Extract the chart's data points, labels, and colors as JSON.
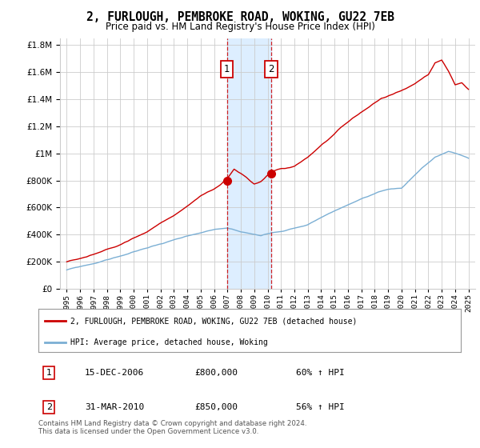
{
  "title": "2, FURLOUGH, PEMBROKE ROAD, WOKING, GU22 7EB",
  "subtitle": "Price paid vs. HM Land Registry's House Price Index (HPI)",
  "legend_label_red": "2, FURLOUGH, PEMBROKE ROAD, WOKING, GU22 7EB (detached house)",
  "legend_label_blue": "HPI: Average price, detached house, Woking",
  "footer": "Contains HM Land Registry data © Crown copyright and database right 2024.\nThis data is licensed under the Open Government Licence v3.0.",
  "purchase1_label": "1",
  "purchase1_date": "15-DEC-2006",
  "purchase1_price": "£800,000",
  "purchase1_pct": "60% ↑ HPI",
  "purchase1_year": 2006.96,
  "purchase1_value": 800000,
  "purchase2_label": "2",
  "purchase2_date": "31-MAR-2010",
  "purchase2_price": "£850,000",
  "purchase2_pct": "56% ↑ HPI",
  "purchase2_year": 2010.25,
  "purchase2_value": 850000,
  "ylim": [
    0,
    1850000
  ],
  "yticks": [
    0,
    200000,
    400000,
    600000,
    800000,
    1000000,
    1200000,
    1400000,
    1600000,
    1800000
  ],
  "ytick_labels": [
    "£0",
    "£200K",
    "£400K",
    "£600K",
    "£800K",
    "£1M",
    "£1.2M",
    "£1.4M",
    "£1.6M",
    "£1.8M"
  ],
  "xlim_left": 1994.5,
  "xlim_right": 2025.5,
  "red_color": "#cc0000",
  "blue_color": "#7bafd4",
  "shade_color": "#ddeeff",
  "grid_color": "#cccccc",
  "bg_color": "#ffffff"
}
